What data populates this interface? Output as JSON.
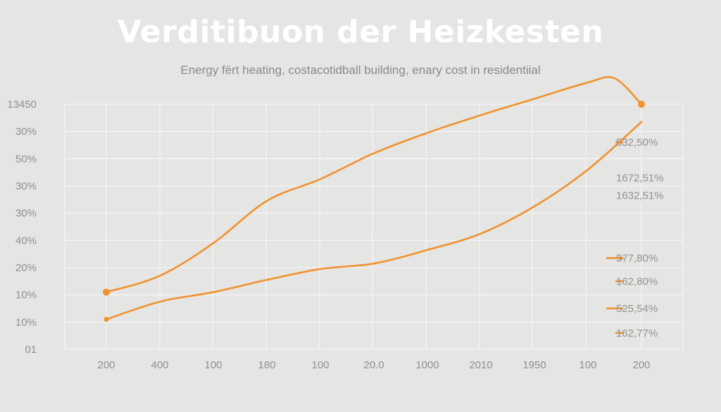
{
  "chart_data": {
    "type": "line",
    "title": "Verditibuon der Heizkesten",
    "subtitle": "Energy fërt heating, costacotidball building, enary cost in residentiial",
    "x_tick_labels": [
      "200",
      "400",
      "100",
      "180",
      "100",
      "20.0",
      "1000",
      "2010",
      "1950",
      "100",
      "200"
    ],
    "y_tick_labels": [
      "01",
      "10%",
      "10%",
      "20%",
      "40%",
      "30%",
      "30%",
      "50%",
      "30%",
      "1⁠3450"
    ],
    "grid": true,
    "series": [
      {
        "color": "#f0922e",
        "x_index": [
          0,
          1,
          2,
          3,
          4,
          5,
          6,
          7,
          8,
          9,
          9.5,
          10
        ],
        "y_level": [
          2.1,
          2.7,
          3.9,
          5.45,
          6.25,
          7.2,
          7.95,
          8.6,
          9.2,
          9.8,
          9.95,
          9.0
        ],
        "markers": [
          "start",
          "end"
        ]
      },
      {
        "color": "#f0922e",
        "x_index": [
          0,
          1,
          2,
          3,
          4,
          5,
          6,
          7,
          8,
          9,
          10
        ],
        "y_level": [
          1.1,
          1.75,
          2.1,
          2.55,
          2.95,
          3.15,
          3.65,
          4.25,
          5.25,
          6.6,
          8.35
        ],
        "markers": [
          "start"
        ]
      }
    ],
    "annotations": [
      {
        "text": "532,50%",
        "arrow": "dash",
        "y_level": 7.6
      },
      {
        "text": "1672,51%",
        "arrow": "none",
        "y_level": 6.3
      },
      {
        "text": "1632,51%",
        "arrow": "none",
        "y_level": 5.65
      },
      {
        "text": "577,80%",
        "arrow": "arrow",
        "y_level": 3.35
      },
      {
        "text": "162,80%",
        "arrow": "dash",
        "y_level": 2.5
      },
      {
        "text": "525,54%",
        "arrow": "line",
        "y_level": 1.5
      },
      {
        "text": "162,77%",
        "arrow": "dash",
        "y_level": 0.6
      }
    ]
  }
}
